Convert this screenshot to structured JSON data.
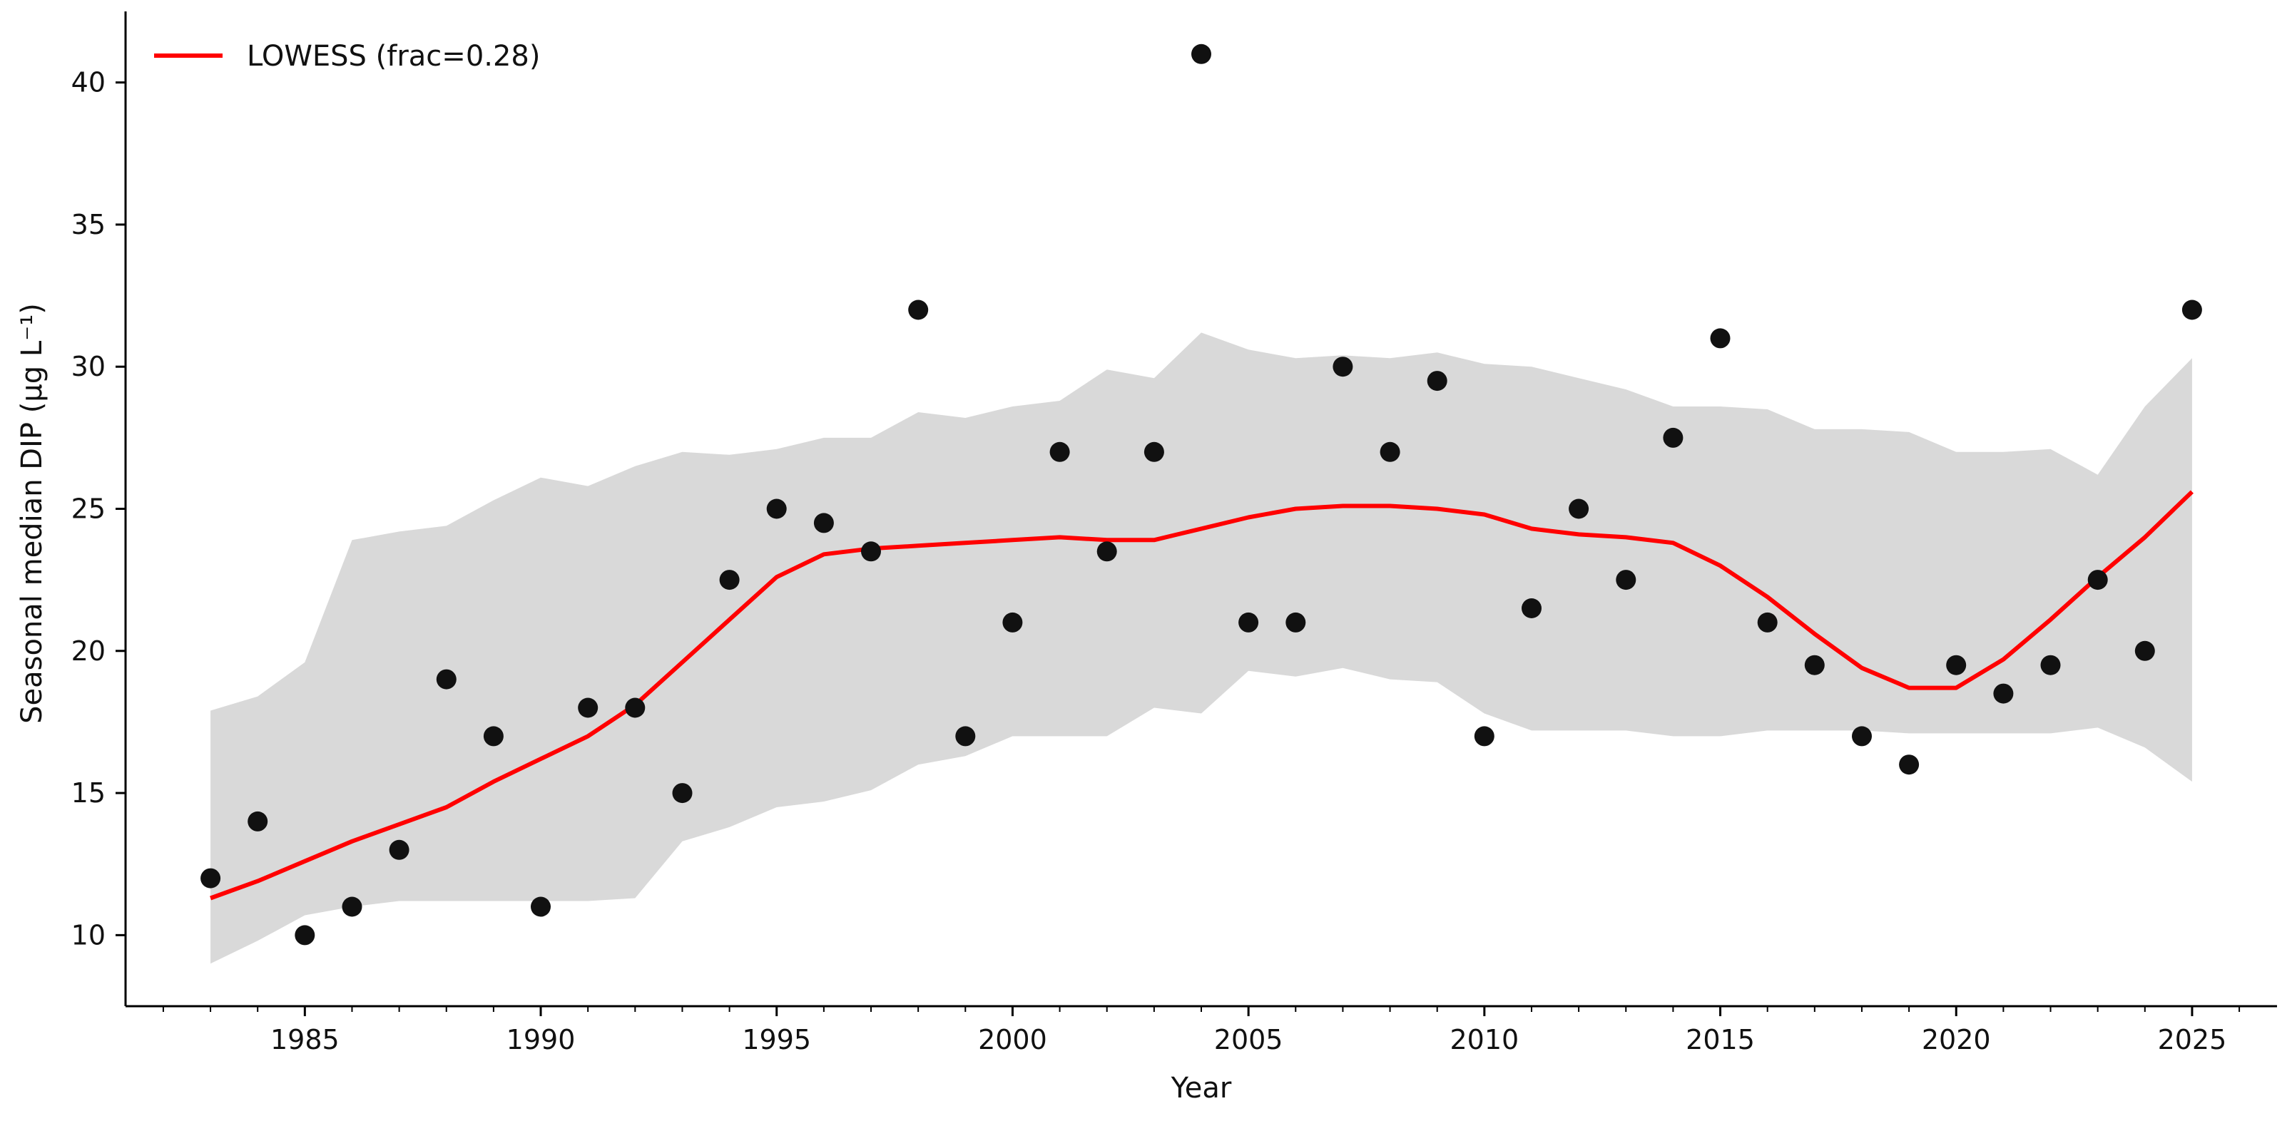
{
  "chart_data": {
    "type": "scatter",
    "xlabel": "Year",
    "ylabel": "Seasonal median DIP (µg L⁻¹)",
    "xlim": [
      1981.2,
      2026.8
    ],
    "ylim": [
      7.5,
      42.5
    ],
    "xticks": [
      1985,
      1990,
      1995,
      2000,
      2005,
      2010,
      2015,
      2020,
      2025
    ],
    "yticks": [
      10,
      15,
      20,
      25,
      30,
      35,
      40
    ],
    "grid": false,
    "legend_position": "top-left",
    "legend": [
      {
        "label": "LOWESS (frac=0.28)",
        "color": "#ff0000"
      }
    ],
    "points": {
      "x": [
        1983,
        1984,
        1985,
        1986,
        1987,
        1988,
        1989,
        1990,
        1991,
        1992,
        1993,
        1994,
        1995,
        1996,
        1997,
        1998,
        1999,
        2000,
        2001,
        2002,
        2003,
        2004,
        2005,
        2006,
        2007,
        2008,
        2009,
        2010,
        2011,
        2012,
        2013,
        2014,
        2015,
        2016,
        2017,
        2018,
        2019,
        2020,
        2021,
        2022,
        2023,
        2024,
        2025
      ],
      "y": [
        12,
        14,
        10,
        11,
        13,
        19,
        17,
        11,
        18,
        18,
        15,
        22.5,
        25,
        24.5,
        23.5,
        32,
        17,
        21,
        27,
        23.5,
        27,
        41,
        21,
        21,
        30,
        27,
        29.5,
        17,
        21.5,
        25,
        22.5,
        27.5,
        31,
        21,
        19.5,
        17,
        16,
        19.5,
        18.5,
        19.5,
        22.5,
        20,
        32
      ],
      "color": "#111111"
    },
    "series": [
      {
        "name": "LOWESS (frac=0.28)",
        "color": "#ff0000",
        "x": [
          1983,
          1984,
          1985,
          1986,
          1987,
          1988,
          1989,
          1990,
          1991,
          1992,
          1993,
          1994,
          1995,
          1996,
          1997,
          1998,
          1999,
          2000,
          2001,
          2002,
          2003,
          2004,
          2005,
          2006,
          2007,
          2008,
          2009,
          2010,
          2011,
          2012,
          2013,
          2014,
          2015,
          2016,
          2017,
          2018,
          2019,
          2020,
          2021,
          2022,
          2023,
          2024,
          2025
        ],
        "y": [
          11.3,
          11.9,
          12.6,
          13.3,
          13.9,
          14.5,
          15.4,
          16.2,
          17.0,
          18.1,
          19.6,
          21.1,
          22.6,
          23.4,
          23.6,
          23.7,
          23.8,
          23.9,
          24.0,
          23.9,
          23.9,
          24.3,
          24.7,
          25.0,
          25.1,
          25.1,
          25.0,
          24.8,
          24.3,
          24.1,
          24.0,
          23.8,
          23.0,
          21.9,
          20.6,
          19.4,
          18.7,
          18.7,
          19.7,
          21.1,
          22.6,
          24.0,
          25.6
        ]
      }
    ],
    "confidence_band": {
      "color": "#d9d9d9",
      "x": [
        1983,
        1984,
        1985,
        1986,
        1987,
        1988,
        1989,
        1990,
        1991,
        1992,
        1993,
        1994,
        1995,
        1996,
        1997,
        1998,
        1999,
        2000,
        2001,
        2002,
        2003,
        2004,
        2005,
        2006,
        2007,
        2008,
        2009,
        2010,
        2011,
        2012,
        2013,
        2014,
        2015,
        2016,
        2017,
        2018,
        2019,
        2020,
        2021,
        2022,
        2023,
        2024,
        2025
      ],
      "upper": [
        17.9,
        18.4,
        19.6,
        23.9,
        24.2,
        24.4,
        25.3,
        26.1,
        25.8,
        26.5,
        27.0,
        26.9,
        27.1,
        27.5,
        27.5,
        28.4,
        28.2,
        28.6,
        28.8,
        29.9,
        29.6,
        31.2,
        30.6,
        30.3,
        30.4,
        30.3,
        30.5,
        30.1,
        30.0,
        29.6,
        29.2,
        28.6,
        28.6,
        28.5,
        27.8,
        27.8,
        27.7,
        27.0,
        27.0,
        27.1,
        26.2,
        28.6,
        30.3
      ],
      "lower": [
        9.0,
        9.8,
        10.7,
        11.0,
        11.2,
        11.2,
        11.2,
        11.2,
        11.2,
        11.3,
        13.3,
        13.8,
        14.5,
        14.7,
        15.1,
        16.0,
        16.3,
        17.0,
        17.0,
        17.0,
        18.0,
        17.8,
        19.3,
        19.1,
        19.4,
        19.0,
        18.9,
        17.8,
        17.2,
        17.2,
        17.2,
        17.0,
        17.0,
        17.2,
        17.2,
        17.2,
        17.1,
        17.1,
        17.1,
        17.1,
        17.3,
        16.6,
        15.4
      ]
    }
  }
}
